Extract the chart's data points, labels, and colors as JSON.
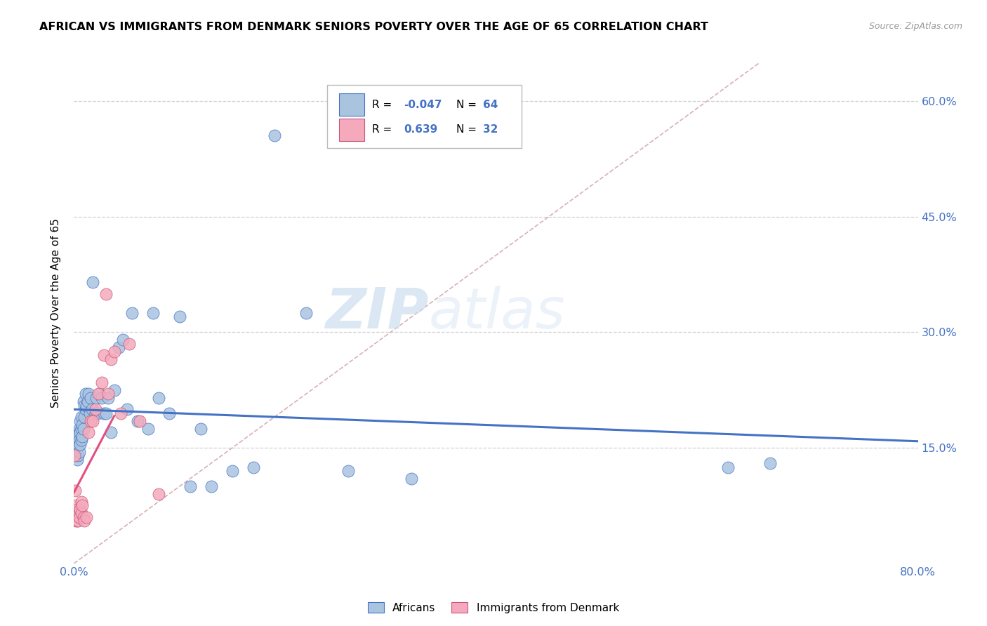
{
  "title": "AFRICAN VS IMMIGRANTS FROM DENMARK SENIORS POVERTY OVER THE AGE OF 65 CORRELATION CHART",
  "source": "Source: ZipAtlas.com",
  "ylabel": "Seniors Poverty Over the Age of 65",
  "xlim": [
    0,
    0.8
  ],
  "ylim": [
    0,
    0.65
  ],
  "africans_color": "#aac4e0",
  "denmark_color": "#f4aabc",
  "line_africans_color": "#4472c4",
  "line_denmark_color": "#e05080",
  "watermark_zip": "ZIP",
  "watermark_atlas": "atlas",
  "africans_x": [
    0.001,
    0.002,
    0.002,
    0.003,
    0.003,
    0.003,
    0.004,
    0.004,
    0.004,
    0.005,
    0.005,
    0.005,
    0.006,
    0.006,
    0.006,
    0.007,
    0.007,
    0.007,
    0.008,
    0.008,
    0.009,
    0.009,
    0.01,
    0.01,
    0.011,
    0.011,
    0.012,
    0.013,
    0.014,
    0.015,
    0.016,
    0.017,
    0.018,
    0.02,
    0.021,
    0.022,
    0.024,
    0.026,
    0.028,
    0.03,
    0.032,
    0.035,
    0.038,
    0.042,
    0.046,
    0.05,
    0.055,
    0.06,
    0.07,
    0.075,
    0.08,
    0.09,
    0.1,
    0.11,
    0.12,
    0.13,
    0.15,
    0.17,
    0.19,
    0.22,
    0.26,
    0.32,
    0.62,
    0.66
  ],
  "africans_y": [
    0.155,
    0.145,
    0.16,
    0.135,
    0.15,
    0.165,
    0.14,
    0.155,
    0.17,
    0.145,
    0.16,
    0.175,
    0.155,
    0.17,
    0.185,
    0.16,
    0.175,
    0.19,
    0.165,
    0.18,
    0.175,
    0.21,
    0.19,
    0.205,
    0.2,
    0.22,
    0.205,
    0.21,
    0.22,
    0.195,
    0.215,
    0.2,
    0.365,
    0.195,
    0.215,
    0.195,
    0.22,
    0.215,
    0.195,
    0.195,
    0.215,
    0.17,
    0.225,
    0.28,
    0.29,
    0.2,
    0.325,
    0.185,
    0.175,
    0.325,
    0.215,
    0.195,
    0.32,
    0.1,
    0.175,
    0.1,
    0.12,
    0.125,
    0.555,
    0.325,
    0.12,
    0.11,
    0.125,
    0.13
  ],
  "denmark_x": [
    0.0005,
    0.001,
    0.0015,
    0.002,
    0.002,
    0.003,
    0.003,
    0.004,
    0.005,
    0.005,
    0.006,
    0.007,
    0.007,
    0.008,
    0.009,
    0.01,
    0.012,
    0.014,
    0.016,
    0.018,
    0.02,
    0.023,
    0.026,
    0.028,
    0.03,
    0.032,
    0.035,
    0.038,
    0.044,
    0.052,
    0.062,
    0.08
  ],
  "denmark_y": [
    0.14,
    0.095,
    0.06,
    0.075,
    0.055,
    0.07,
    0.055,
    0.055,
    0.065,
    0.06,
    0.07,
    0.065,
    0.08,
    0.075,
    0.06,
    0.055,
    0.06,
    0.17,
    0.185,
    0.185,
    0.2,
    0.22,
    0.235,
    0.27,
    0.35,
    0.22,
    0.265,
    0.275,
    0.195,
    0.285,
    0.185,
    0.09
  ],
  "legend_r1_label": "R = ",
  "legend_r1_val": "-0.047",
  "legend_n1_label": "N = ",
  "legend_n1_val": "64",
  "legend_r2_label": "R =  ",
  "legend_r2_val": "0.639",
  "legend_n2_label": "N = ",
  "legend_n2_val": "32"
}
